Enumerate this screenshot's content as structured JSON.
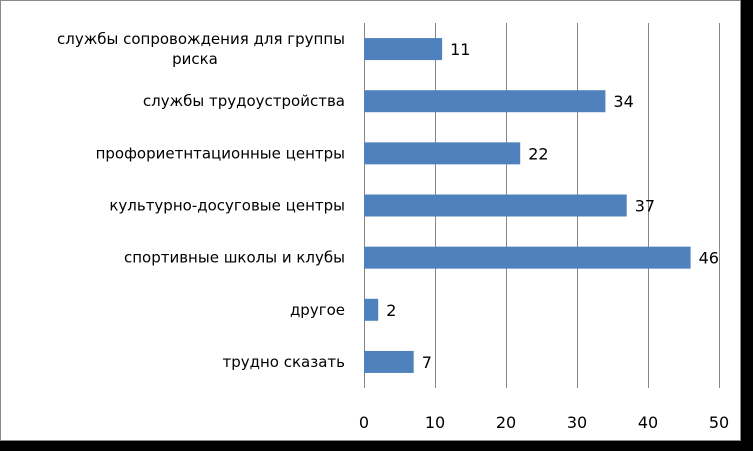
{
  "chart_data": {
    "type": "bar",
    "orientation": "horizontal",
    "categories": [
      "службы сопровождения для группы риска",
      "службы трудоустройства",
      "профориетнтационные центры",
      "культурно-досуговые центры",
      "спортивные школы и клубы",
      "другое",
      "трудно сказать"
    ],
    "category_lines": [
      [
        "службы сопровождения для группы",
        "риска"
      ],
      [
        "службы трудоустройства"
      ],
      [
        "профориетнтационные центры"
      ],
      [
        "культурно-досуговые центры"
      ],
      [
        "спортивные школы и клубы"
      ],
      [
        "другое"
      ],
      [
        "трудно сказать"
      ]
    ],
    "values": [
      11,
      34,
      22,
      37,
      46,
      2,
      7
    ],
    "xlim": [
      0,
      50
    ],
    "xticks": [
      0,
      10,
      20,
      30,
      40,
      50
    ],
    "grid": true,
    "legend": "none",
    "data_labels": true,
    "bar_color": "#4f81bd",
    "grid_color": "#868686"
  }
}
